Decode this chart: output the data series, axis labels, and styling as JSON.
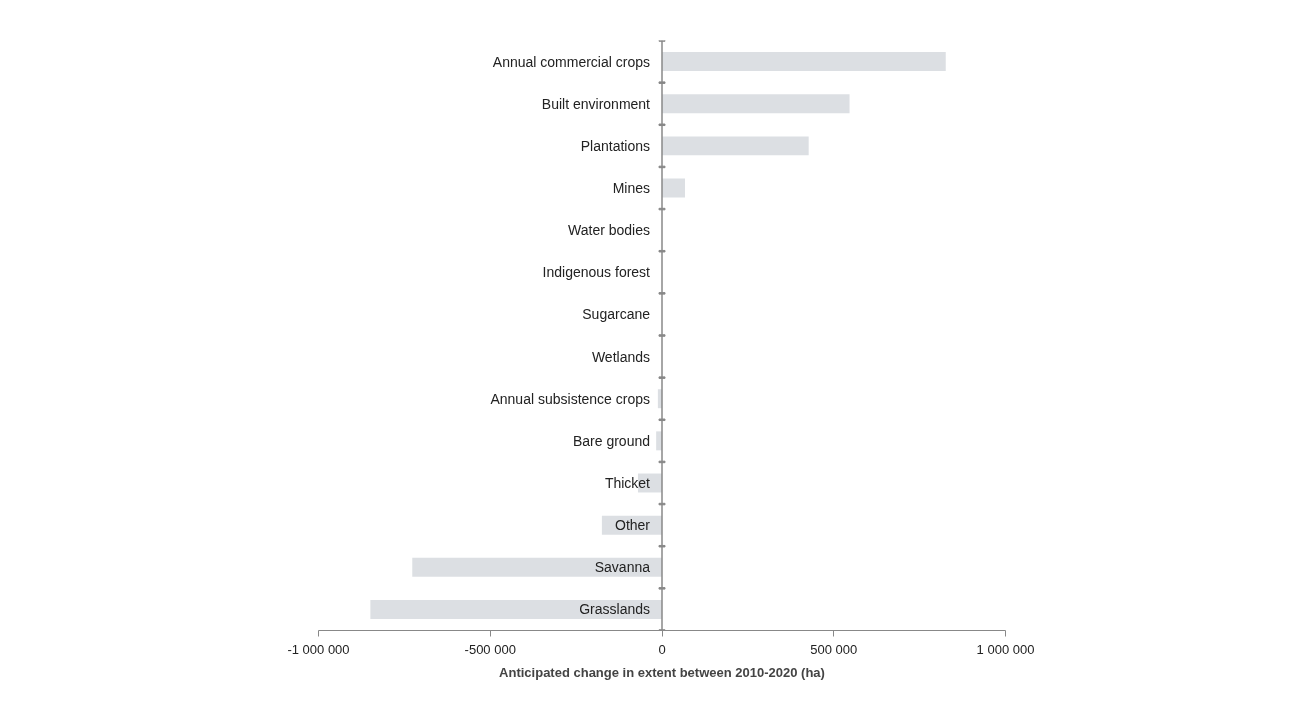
{
  "chart_data": {
    "type": "bar",
    "orientation": "horizontal",
    "xlabel": "Anticipated change in extent between 2010-2020 (ha)",
    "categories": [
      "Annual commercial crops",
      "Built environment",
      "Plantations",
      "Mines",
      "Water bodies",
      "Indigenous forest",
      "Sugarcane",
      "Wetlands",
      "Annual subsistence crops",
      "Bare ground",
      "Thicket",
      "Other",
      "Savanna",
      "Grasslands"
    ],
    "values": [
      826000,
      546000,
      427000,
      67000,
      0,
      0,
      0,
      0,
      -12000,
      -17000,
      -70000,
      -175000,
      -727000,
      -849000
    ],
    "color": "#dcdfe3",
    "xlim": [
      -1000000,
      1000000
    ],
    "xticks": [
      {
        "value": -1000000,
        "label": "-1 000 000"
      },
      {
        "value": -500000,
        "label": "-500 000"
      },
      0,
      {
        "value": 500000,
        "label": "500 000"
      },
      {
        "value": 1000000,
        "label": "1 000 000"
      }
    ],
    "grid": false
  }
}
